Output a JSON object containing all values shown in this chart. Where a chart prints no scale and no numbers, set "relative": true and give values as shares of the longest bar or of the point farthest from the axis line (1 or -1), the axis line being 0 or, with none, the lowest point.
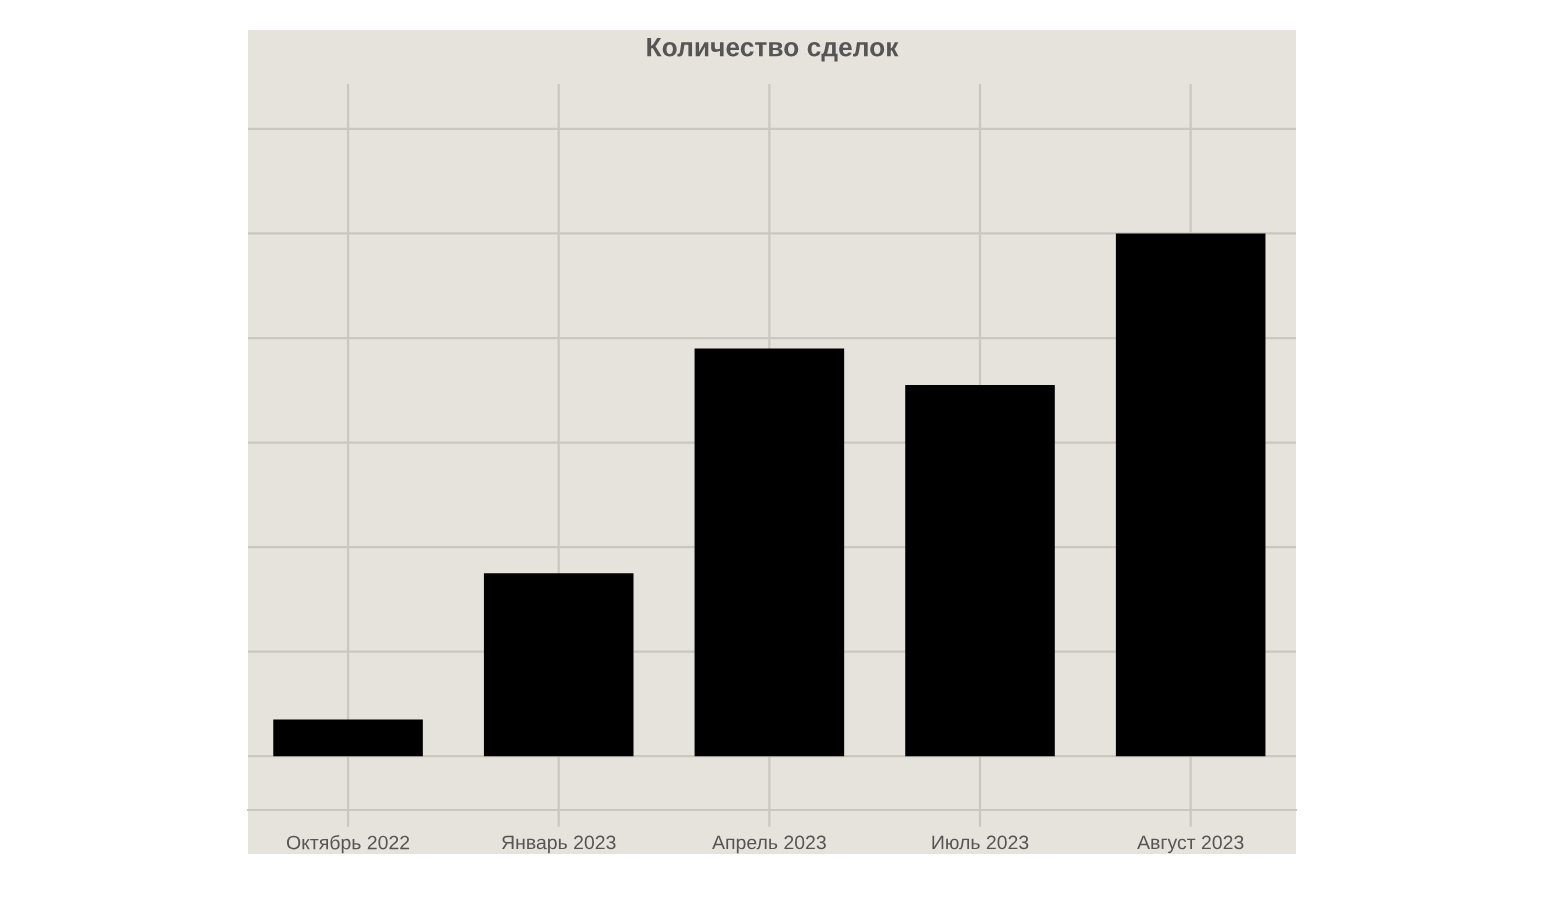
{
  "chart_data": {
    "type": "bar",
    "title": "Количество сделок",
    "categories": [
      "Октябрь 2022",
      "Январь 2023",
      "Апрель 2023",
      "Июль 2023",
      "Август 2023"
    ],
    "values": [
      0.07,
      0.35,
      0.78,
      0.71,
      1
    ],
    "color": "#000000",
    "relative": true,
    "grid": true
  }
}
